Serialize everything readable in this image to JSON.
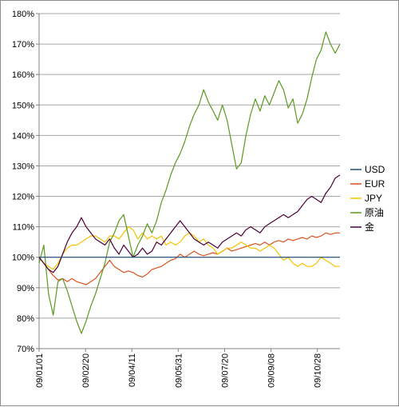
{
  "chart_data": {
    "type": "line",
    "title": "",
    "xlabel": "",
    "ylabel": "",
    "ylim": [
      70,
      180
    ],
    "ytick_step": 10,
    "ytick_suffix": "%",
    "grid": true,
    "legend_position": "right",
    "x_ticks": [
      "09/01/01",
      "09/02/20",
      "09/04/11",
      "09/05/31",
      "09/07/20",
      "09/09/08",
      "09/10/28"
    ],
    "baseline": 100,
    "series": [
      {
        "name": "USD",
        "color": "#1f4e79",
        "points": [
          [
            0,
            100
          ],
          [
            64,
            100
          ]
        ]
      },
      {
        "name": "EUR",
        "color": "#d9531e",
        "points": [
          [
            0,
            100
          ],
          [
            1,
            98
          ],
          [
            2,
            96
          ],
          [
            3,
            94
          ],
          [
            4,
            92.5
          ],
          [
            5,
            93
          ],
          [
            6,
            92
          ],
          [
            7,
            93
          ],
          [
            8,
            92
          ],
          [
            9,
            91.5
          ],
          [
            10,
            91
          ],
          [
            11,
            92
          ],
          [
            12,
            93
          ],
          [
            13,
            95
          ],
          [
            14,
            97
          ],
          [
            15,
            99
          ],
          [
            16,
            97
          ],
          [
            17,
            96
          ],
          [
            18,
            95
          ],
          [
            19,
            95.5
          ],
          [
            20,
            95
          ],
          [
            21,
            94
          ],
          [
            22,
            93.5
          ],
          [
            23,
            94.5
          ],
          [
            24,
            96
          ],
          [
            25,
            96.5
          ],
          [
            26,
            97
          ],
          [
            27,
            98
          ],
          [
            28,
            99
          ],
          [
            29,
            99.5
          ],
          [
            30,
            101
          ],
          [
            31,
            100
          ],
          [
            32,
            101
          ],
          [
            33,
            102
          ],
          [
            34,
            101
          ],
          [
            35,
            100.5
          ],
          [
            36,
            101
          ],
          [
            37,
            101.5
          ],
          [
            38,
            101
          ],
          [
            39,
            102
          ],
          [
            40,
            103
          ],
          [
            41,
            102
          ],
          [
            42,
            102.5
          ],
          [
            43,
            103
          ],
          [
            44,
            103.5
          ],
          [
            45,
            104
          ],
          [
            46,
            104.5
          ],
          [
            47,
            104
          ],
          [
            48,
            105
          ],
          [
            49,
            104
          ],
          [
            50,
            105
          ],
          [
            51,
            105.5
          ],
          [
            52,
            105
          ],
          [
            53,
            106
          ],
          [
            54,
            105.5
          ],
          [
            55,
            106
          ],
          [
            56,
            106.5
          ],
          [
            57,
            106
          ],
          [
            58,
            107
          ],
          [
            59,
            106.5
          ],
          [
            60,
            107
          ],
          [
            61,
            108
          ],
          [
            62,
            107.5
          ],
          [
            63,
            108
          ],
          [
            64,
            108
          ]
        ]
      },
      {
        "name": "JPY",
        "color": "#f5c200",
        "points": [
          [
            0,
            100
          ],
          [
            1,
            98
          ],
          [
            2,
            97
          ],
          [
            3,
            96
          ],
          [
            4,
            98
          ],
          [
            5,
            101
          ],
          [
            6,
            103
          ],
          [
            7,
            104
          ],
          [
            8,
            104
          ],
          [
            9,
            105
          ],
          [
            10,
            106
          ],
          [
            11,
            107
          ],
          [
            12,
            107
          ],
          [
            13,
            106
          ],
          [
            14,
            105
          ],
          [
            15,
            107
          ],
          [
            16,
            107
          ],
          [
            17,
            106
          ],
          [
            18,
            108
          ],
          [
            19,
            110
          ],
          [
            20,
            109
          ],
          [
            21,
            106
          ],
          [
            22,
            108
          ],
          [
            23,
            106
          ],
          [
            24,
            107
          ],
          [
            25,
            106
          ],
          [
            26,
            107
          ],
          [
            27,
            104
          ],
          [
            28,
            105
          ],
          [
            29,
            104
          ],
          [
            30,
            105
          ],
          [
            31,
            107
          ],
          [
            32,
            108
          ],
          [
            33,
            107
          ],
          [
            34,
            105
          ],
          [
            35,
            106
          ],
          [
            36,
            104
          ],
          [
            37,
            103
          ],
          [
            38,
            101
          ],
          [
            39,
            102
          ],
          [
            40,
            103
          ],
          [
            41,
            103
          ],
          [
            42,
            104
          ],
          [
            43,
            105
          ],
          [
            44,
            104
          ],
          [
            45,
            103
          ],
          [
            46,
            103
          ],
          [
            47,
            102
          ],
          [
            48,
            103
          ],
          [
            49,
            104
          ],
          [
            50,
            103
          ],
          [
            51,
            101
          ],
          [
            52,
            99
          ],
          [
            53,
            100
          ],
          [
            54,
            98
          ],
          [
            55,
            97
          ],
          [
            56,
            98
          ],
          [
            57,
            97
          ],
          [
            58,
            97
          ],
          [
            59,
            98
          ],
          [
            60,
            100
          ],
          [
            61,
            99
          ],
          [
            62,
            98
          ],
          [
            63,
            97
          ],
          [
            64,
            97
          ]
        ]
      },
      {
        "name": "原油",
        "color": "#5a9a20",
        "points": [
          [
            0,
            98
          ],
          [
            1,
            104
          ],
          [
            2,
            88
          ],
          [
            3,
            81
          ],
          [
            4,
            92
          ],
          [
            5,
            93
          ],
          [
            6,
            89
          ],
          [
            7,
            84
          ],
          [
            8,
            79
          ],
          [
            9,
            75
          ],
          [
            10,
            79
          ],
          [
            11,
            84
          ],
          [
            12,
            88
          ],
          [
            13,
            93
          ],
          [
            14,
            98
          ],
          [
            15,
            105
          ],
          [
            16,
            108
          ],
          [
            17,
            112
          ],
          [
            18,
            114
          ],
          [
            19,
            107
          ],
          [
            20,
            100
          ],
          [
            21,
            104
          ],
          [
            22,
            107
          ],
          [
            23,
            111
          ],
          [
            24,
            108
          ],
          [
            25,
            112
          ],
          [
            26,
            118
          ],
          [
            27,
            122
          ],
          [
            28,
            127
          ],
          [
            29,
            131
          ],
          [
            30,
            134
          ],
          [
            31,
            138
          ],
          [
            32,
            143
          ],
          [
            33,
            147
          ],
          [
            34,
            150
          ],
          [
            35,
            155
          ],
          [
            36,
            151
          ],
          [
            37,
            148
          ],
          [
            38,
            145
          ],
          [
            39,
            150
          ],
          [
            40,
            145
          ],
          [
            41,
            137
          ],
          [
            42,
            129
          ],
          [
            43,
            131
          ],
          [
            44,
            140
          ],
          [
            45,
            147
          ],
          [
            46,
            152
          ],
          [
            47,
            148
          ],
          [
            48,
            153
          ],
          [
            49,
            150
          ],
          [
            50,
            154
          ],
          [
            51,
            158
          ],
          [
            52,
            155
          ],
          [
            53,
            149
          ],
          [
            54,
            152
          ],
          [
            55,
            144
          ],
          [
            56,
            147
          ],
          [
            57,
            152
          ],
          [
            58,
            159
          ],
          [
            59,
            165
          ],
          [
            60,
            168
          ],
          [
            61,
            174
          ],
          [
            62,
            170
          ],
          [
            63,
            167
          ],
          [
            64,
            170
          ]
        ]
      },
      {
        "name": "金",
        "color": "#4b0038",
        "points": [
          [
            0,
            100
          ],
          [
            1,
            98
          ],
          [
            2,
            96
          ],
          [
            3,
            95
          ],
          [
            4,
            97
          ],
          [
            5,
            101
          ],
          [
            6,
            105
          ],
          [
            7,
            108
          ],
          [
            8,
            110
          ],
          [
            9,
            113
          ],
          [
            10,
            110
          ],
          [
            11,
            108
          ],
          [
            12,
            106
          ],
          [
            13,
            105
          ],
          [
            14,
            104
          ],
          [
            15,
            106
          ],
          [
            16,
            103
          ],
          [
            17,
            101
          ],
          [
            18,
            104
          ],
          [
            19,
            102
          ],
          [
            20,
            100
          ],
          [
            21,
            101
          ],
          [
            22,
            103
          ],
          [
            23,
            101
          ],
          [
            24,
            102
          ],
          [
            25,
            105
          ],
          [
            26,
            104
          ],
          [
            27,
            106
          ],
          [
            28,
            108
          ],
          [
            29,
            110
          ],
          [
            30,
            112
          ],
          [
            31,
            110
          ],
          [
            32,
            108
          ],
          [
            33,
            106
          ],
          [
            34,
            105
          ],
          [
            35,
            104
          ],
          [
            36,
            105
          ],
          [
            37,
            104
          ],
          [
            38,
            103
          ],
          [
            39,
            105
          ],
          [
            40,
            106
          ],
          [
            41,
            107
          ],
          [
            42,
            108
          ],
          [
            43,
            107
          ],
          [
            44,
            109
          ],
          [
            45,
            110
          ],
          [
            46,
            109
          ],
          [
            47,
            108
          ],
          [
            48,
            110
          ],
          [
            49,
            111
          ],
          [
            50,
            112
          ],
          [
            51,
            113
          ],
          [
            52,
            114
          ],
          [
            53,
            113
          ],
          [
            54,
            114
          ],
          [
            55,
            115
          ],
          [
            56,
            117
          ],
          [
            57,
            119
          ],
          [
            58,
            120
          ],
          [
            59,
            119
          ],
          [
            60,
            118
          ],
          [
            61,
            121
          ],
          [
            62,
            123
          ],
          [
            63,
            126
          ],
          [
            64,
            127
          ]
        ]
      }
    ]
  }
}
